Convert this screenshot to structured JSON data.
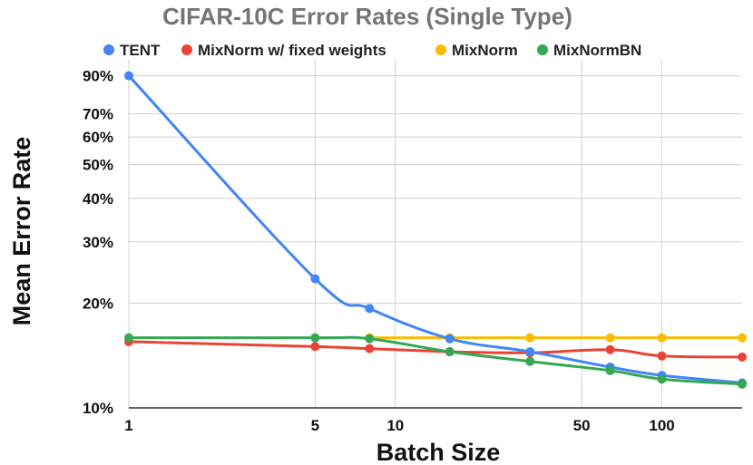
{
  "chart_data": {
    "type": "line",
    "title": "CIFAR-10C Error Rates (Single Type)",
    "xlabel": "Batch Size",
    "ylabel": "Mean Error Rate",
    "x_scale": "log",
    "y_scale": "log",
    "xlim": [
      1,
      200
    ],
    "ylim": [
      10,
      100
    ],
    "x_ticks": [
      1,
      5,
      10,
      50,
      100
    ],
    "x_tick_labels": [
      "1",
      "5",
      "10",
      "50",
      "100"
    ],
    "y_ticks": [
      10,
      20,
      30,
      40,
      50,
      60,
      70,
      90
    ],
    "y_tick_labels": [
      "10%",
      "20%",
      "30%",
      "40%",
      "50%",
      "60%",
      "70%",
      "90%"
    ],
    "x": [
      1,
      5,
      8,
      16,
      32,
      64,
      100,
      200
    ],
    "legend_position": "top",
    "series": [
      {
        "name": "TENT",
        "color": "#4285F4",
        "x": [
          1,
          5,
          8,
          16,
          32,
          64,
          100,
          200
        ],
        "values": [
          90,
          23.5,
          19.3,
          15.8,
          14.5,
          13.1,
          12.4,
          11.8
        ]
      },
      {
        "name": "MixNorm w/ fixed weights",
        "color": "#EA4335",
        "x": [
          1,
          5,
          8,
          16,
          32,
          64,
          100,
          200
        ],
        "values": [
          15.5,
          15,
          14.8,
          14.5,
          14.4,
          14.7,
          14.1,
          14.0
        ]
      },
      {
        "name": "MixNorm",
        "color": "#FBBC04",
        "x": [
          8,
          16,
          32,
          64,
          100,
          200
        ],
        "values": [
          15.9,
          15.9,
          15.9,
          15.9,
          15.9,
          15.9
        ]
      },
      {
        "name": "MixNormBN",
        "color": "#34A853",
        "x": [
          1,
          5,
          8,
          16,
          32,
          64,
          100,
          200
        ],
        "values": [
          15.9,
          15.9,
          15.8,
          14.5,
          13.6,
          12.8,
          12.1,
          11.7
        ]
      }
    ]
  }
}
